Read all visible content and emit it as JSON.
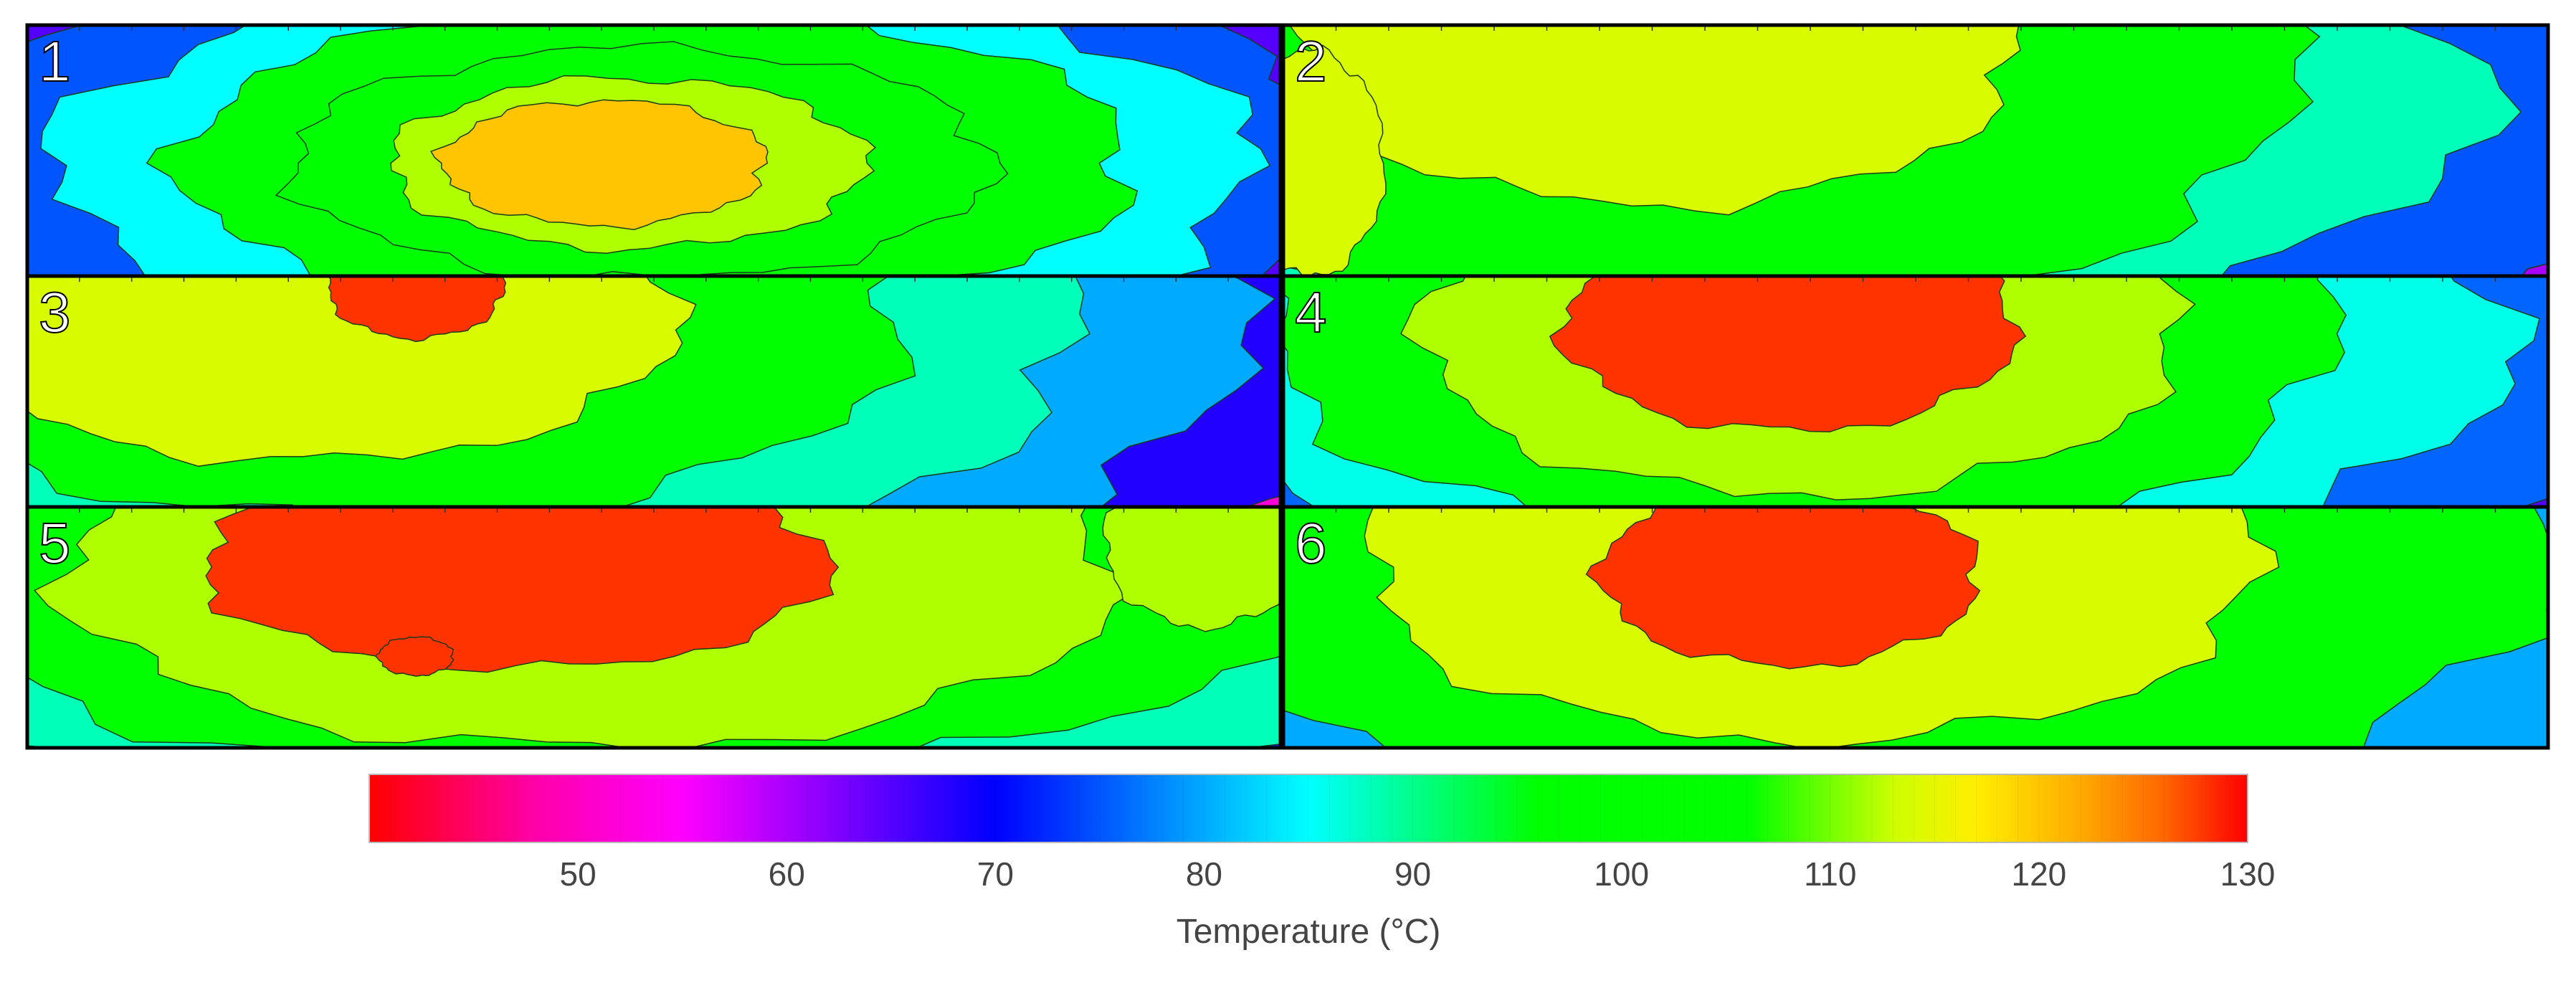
{
  "chart_data": {
    "type": "heatmap",
    "description_units": "Temperature (°C)",
    "panels": [
      {
        "label": "1",
        "background_level": 80,
        "hotspots": [
          {
            "cx": 0.5,
            "cy": 0.55,
            "rx": 0.62,
            "ry": 0.8,
            "peak": 118
          }
        ],
        "bands": [
          {
            "cx": 0.5,
            "cy": 0.58,
            "rx": 0.68,
            "ry": 1.05,
            "level": 65
          },
          {
            "cx": 0.5,
            "cy": 0.57,
            "rx": 0.58,
            "ry": 0.9,
            "level": 75
          },
          {
            "cx": 0.5,
            "cy": 0.56,
            "rx": 0.48,
            "ry": 0.76,
            "level": 85
          },
          {
            "cx": 0.5,
            "cy": 0.55,
            "rx": 0.38,
            "ry": 0.62,
            "level": 97
          },
          {
            "cx": 0.49,
            "cy": 0.55,
            "rx": 0.28,
            "ry": 0.46,
            "level": 105
          },
          {
            "cx": 0.48,
            "cy": 0.55,
            "rx": 0.19,
            "ry": 0.34,
            "level": 112
          },
          {
            "cx": 0.46,
            "cy": 0.55,
            "rx": 0.13,
            "ry": 0.25,
            "level": 120
          }
        ],
        "edge_level": 50
      },
      {
        "label": "2",
        "bands": [
          {
            "cx": 0.38,
            "cy": 0.35,
            "rx": 0.95,
            "ry": 1.3,
            "level": 60
          },
          {
            "cx": 0.36,
            "cy": 0.3,
            "rx": 0.78,
            "ry": 1.2,
            "level": 75
          },
          {
            "cx": 0.33,
            "cy": 0.25,
            "rx": 0.62,
            "ry": 1.05,
            "level": 88
          },
          {
            "cx": 0.3,
            "cy": 0.22,
            "rx": 0.5,
            "ry": 0.95,
            "level": 100
          },
          {
            "cx": 0.3,
            "cy": 0.1,
            "rx": 0.28,
            "ry": 0.62,
            "level": 114
          },
          {
            "cx": 0.02,
            "cy": 0.55,
            "rx": 0.06,
            "ry": 0.45,
            "level": 114
          }
        ],
        "edge_level": 52
      },
      {
        "label": "3",
        "bands": [
          {
            "cx": 0.38,
            "cy": 0.35,
            "rx": 0.72,
            "ry": 1.25,
            "level": 68
          },
          {
            "cx": 0.35,
            "cy": 0.3,
            "rx": 0.62,
            "ry": 1.1,
            "level": 80
          },
          {
            "cx": 0.32,
            "cy": 0.25,
            "rx": 0.52,
            "ry": 0.98,
            "level": 88
          },
          {
            "cx": 0.28,
            "cy": 0.2,
            "rx": 0.42,
            "ry": 0.85,
            "level": 100
          },
          {
            "cx": 0.22,
            "cy": 0.18,
            "rx": 0.3,
            "ry": 0.62,
            "level": 114
          },
          {
            "cx": 0.31,
            "cy": 0.05,
            "rx": 0.07,
            "ry": 0.22,
            "level": 128
          }
        ],
        "edge_level": 52
      },
      {
        "label": "4",
        "bands": [
          {
            "cx": 0.45,
            "cy": 0.35,
            "rx": 0.82,
            "ry": 1.35,
            "level": 65
          },
          {
            "cx": 0.42,
            "cy": 0.3,
            "rx": 0.68,
            "ry": 1.2,
            "level": 76
          },
          {
            "cx": 0.42,
            "cy": 0.28,
            "rx": 0.55,
            "ry": 1.05,
            "level": 86
          },
          {
            "cx": 0.41,
            "cy": 0.25,
            "rx": 0.42,
            "ry": 0.9,
            "level": 100
          },
          {
            "cx": 0.41,
            "cy": 0.25,
            "rx": 0.3,
            "ry": 0.7,
            "level": 112
          },
          {
            "cx": 0.4,
            "cy": 0.22,
            "rx": 0.18,
            "ry": 0.45,
            "level": 128
          }
        ],
        "edge_level": 62
      },
      {
        "label": "5",
        "bands": [
          {
            "cx": 0.5,
            "cy": 0.3,
            "rx": 0.85,
            "ry": 1.2,
            "level": 72
          },
          {
            "cx": 0.48,
            "cy": 0.25,
            "rx": 0.68,
            "ry": 1.05,
            "level": 88
          },
          {
            "cx": 0.47,
            "cy": 0.22,
            "rx": 0.56,
            "ry": 0.92,
            "level": 100
          },
          {
            "cx": 0.45,
            "cy": 0.28,
            "rx": 0.42,
            "ry": 0.72,
            "level": 112
          },
          {
            "cx": 0.39,
            "cy": 0.25,
            "rx": 0.25,
            "ry": 0.42,
            "level": 128
          },
          {
            "cx": 0.94,
            "cy": 0.15,
            "rx": 0.08,
            "ry": 0.35,
            "level": 112
          },
          {
            "cx": 0.31,
            "cy": 0.62,
            "rx": 0.03,
            "ry": 0.08,
            "level": 128
          }
        ],
        "edge_level": 60
      },
      {
        "label": "6",
        "bands": [
          {
            "cx": 0.45,
            "cy": 0.28,
            "rx": 0.9,
            "ry": 1.3,
            "level": 68
          },
          {
            "cx": 0.45,
            "cy": 0.28,
            "rx": 0.72,
            "ry": 1.18,
            "level": 80
          },
          {
            "cx": 0.44,
            "cy": 0.25,
            "rx": 0.56,
            "ry": 1.02,
            "level": 100
          },
          {
            "cx": 0.42,
            "cy": 0.25,
            "rx": 0.35,
            "ry": 0.72,
            "level": 114
          },
          {
            "cx": 0.4,
            "cy": 0.28,
            "rx": 0.15,
            "ry": 0.38,
            "level": 128
          }
        ],
        "edge_level": 50
      }
    ],
    "colorbar": {
      "min": 40,
      "max": 130,
      "ticks": [
        50,
        60,
        70,
        80,
        90,
        100,
        110,
        120,
        130
      ],
      "label": "Temperature (°C)",
      "stops": [
        {
          "v": 40,
          "c": "#ff0000"
        },
        {
          "v": 48,
          "c": "#ff00aa"
        },
        {
          "v": 55,
          "c": "#ff00ff"
        },
        {
          "v": 62,
          "c": "#8800ff"
        },
        {
          "v": 70,
          "c": "#0000ff"
        },
        {
          "v": 78,
          "c": "#0088ff"
        },
        {
          "v": 85,
          "c": "#00ffff"
        },
        {
          "v": 96,
          "c": "#00ff00"
        },
        {
          "v": 106,
          "c": "#00ff00"
        },
        {
          "v": 113,
          "c": "#ccff00"
        },
        {
          "v": 117,
          "c": "#ffee00"
        },
        {
          "v": 122,
          "c": "#ffaa00"
        },
        {
          "v": 126,
          "c": "#ff6600"
        },
        {
          "v": 130,
          "c": "#ff0000"
        }
      ]
    }
  }
}
